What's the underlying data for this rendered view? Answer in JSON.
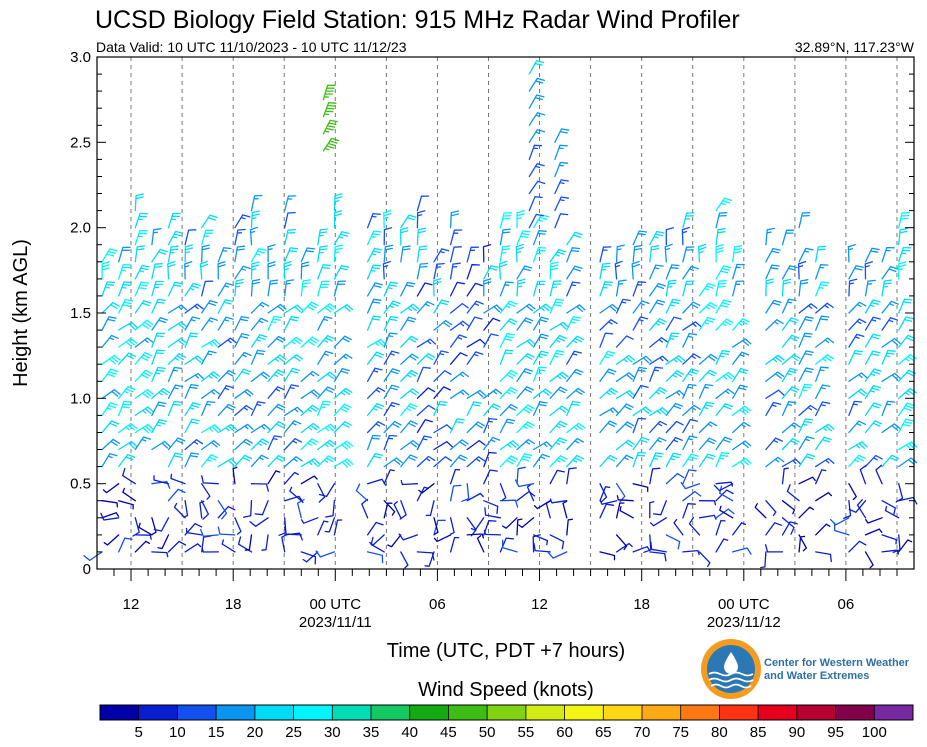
{
  "chart_data": {
    "type": "wind-barb",
    "title": "UCSD Biology Field Station: 915 MHz Radar Wind Profiler",
    "subtitle_left": "Data Valid: 10 UTC 11/10/2023 - 10 UTC 11/12/23",
    "subtitle_right": "32.89°N, 117.23°W",
    "ylabel": "Height (km AGL)",
    "xlabel": "Time (UTC, PDT +7 hours)",
    "ylim": [
      0,
      3.0
    ],
    "y_ticks": [
      "0",
      "0.5",
      "1.0",
      "1.5",
      "2.0",
      "2.5",
      "3.0"
    ],
    "xlim_hours": [
      0,
      48
    ],
    "x_ticks": [
      {
        "hour": 2,
        "label": "12",
        "sublabel": ""
      },
      {
        "hour": 8,
        "label": "18",
        "sublabel": ""
      },
      {
        "hour": 14,
        "label": "00 UTC",
        "sublabel": "2023/11/11"
      },
      {
        "hour": 20,
        "label": "06",
        "sublabel": ""
      },
      {
        "hour": 26,
        "label": "12",
        "sublabel": ""
      },
      {
        "hour": 32,
        "label": "18",
        "sublabel": ""
      },
      {
        "hour": 38,
        "label": "00 UTC",
        "sublabel": "2023/11/12"
      },
      {
        "hour": 44,
        "label": "06",
        "sublabel": ""
      }
    ],
    "grid_hours": [
      2,
      5,
      8,
      11,
      14,
      17,
      20,
      23,
      26,
      29,
      32,
      35,
      38,
      41,
      44,
      47
    ],
    "grid": "dashed vertical every 3 hours",
    "colorbar": {
      "label": "Wind Speed (knots)",
      "tick_labels": [
        "5",
        "10",
        "15",
        "20",
        "25",
        "30",
        "35",
        "40",
        "45",
        "50",
        "55",
        "60",
        "65",
        "70",
        "75",
        "80",
        "85",
        "90",
        "95",
        "100"
      ],
      "colors": [
        "#0000aa",
        "#0a1ecf",
        "#1450ee",
        "#0a96f0",
        "#00dcf5",
        "#00f5ff",
        "#00dcb4",
        "#14c864",
        "#14aa14",
        "#3cbe14",
        "#82d214",
        "#d2eb14",
        "#f5f514",
        "#ffd714",
        "#ffaa14",
        "#ff7814",
        "#ff3214",
        "#e6001e",
        "#b40032",
        "#82004b",
        "#7828a0"
      ]
    },
    "logo_text": [
      "Center for Western Weather",
      "and Water Extremes"
    ]
  }
}
